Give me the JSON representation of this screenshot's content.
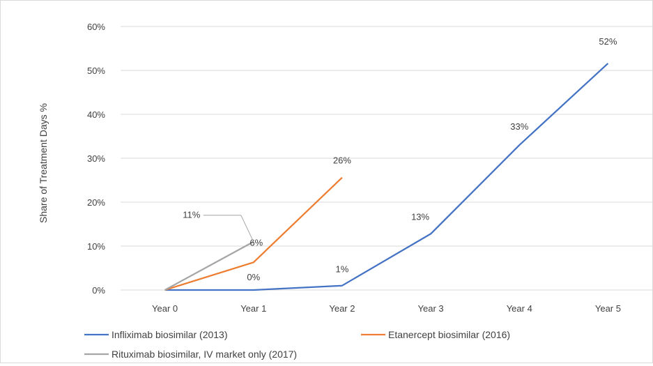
{
  "chart_data": {
    "type": "line",
    "title": "",
    "xlabel": "",
    "ylabel": "Share of Treatment Days %",
    "categories": [
      "Year 0",
      "Year 1",
      "Year 2",
      "Year 3",
      "Year 4",
      "Year 5"
    ],
    "y_ticks": [
      "0%",
      "10%",
      "20%",
      "30%",
      "40%",
      "50%",
      "60%"
    ],
    "ylim": [
      0,
      60
    ],
    "grid": "horizontal",
    "legend_position": "bottom",
    "series": [
      {
        "name": "Infliximab biosimilar (2013)",
        "color": "#4472c4",
        "values": [
          0,
          0,
          1,
          12.8,
          33,
          51.6
        ],
        "labels": [
          "",
          "0%",
          "1%",
          "13%",
          "33%",
          "52%"
        ]
      },
      {
        "name": "Etanercept biosimilar (2016)",
        "color": "#ed7d31",
        "values": [
          0,
          6.3,
          25.6,
          null,
          null,
          null
        ],
        "labels": [
          "",
          "6%",
          "26%",
          "",
          "",
          ""
        ]
      },
      {
        "name": "Rituximab biosimilar, IV market only (2017)",
        "color": "#a5a5a5",
        "values": [
          0,
          11,
          null,
          null,
          null,
          null
        ],
        "labels": [
          "",
          "11%",
          "",
          "",
          "",
          ""
        ]
      }
    ]
  }
}
